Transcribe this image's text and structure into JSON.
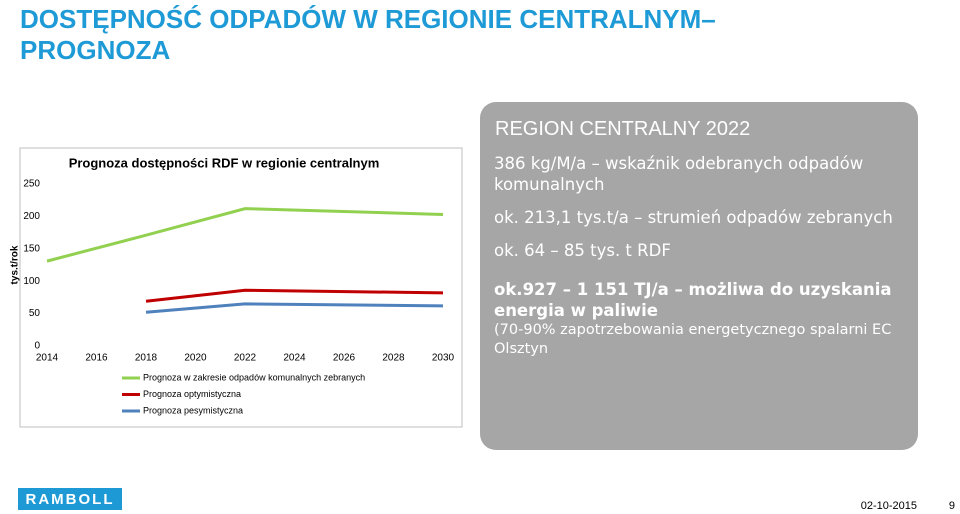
{
  "header": {
    "title": "DOSTĘPNOŚĆ ODPADÓW W REGIONIE CENTRALNYM– PROGNOZA"
  },
  "chart_data": {
    "type": "line",
    "title": "Prognoza dostępności RDF w regionie centralnym",
    "y_label": "tys.t/rok",
    "x": [
      2014,
      2018,
      2022,
      2030
    ],
    "series": [
      {
        "name": "Prognoza w zakresie odpadów komunalnych zebranych",
        "color": "#92d050",
        "values": [
          131,
          171,
          212,
          203
        ]
      },
      {
        "name": "Prognoza optymistyczna",
        "color": "#c00000",
        "values": [
          null,
          69,
          86,
          82
        ]
      },
      {
        "name": "Prognoza pesymistyczna",
        "color": "#4f81bd",
        "values": [
          null,
          52,
          65,
          62
        ]
      }
    ],
    "xlim": [
      2014,
      2030
    ],
    "xticks": [
      2014,
      2016,
      2018,
      2020,
      2022,
      2024,
      2026,
      2028,
      2030
    ],
    "ylim": [
      0,
      250
    ],
    "yticks": [
      0,
      50,
      100,
      150,
      200,
      250
    ],
    "grid": false
  },
  "panel": {
    "heading": "REGION CENTRALNY 2022",
    "items": [
      "386 kg/M/a – wskaźnik odebranych odpadów komunalnych",
      "ok. 213,1 tys.t/a – strumień odpadów zebranych",
      "ok. 64 – 85 tys. t RDF",
      "ok.927 – 1 151 TJ/a – możliwa do uzyskania energia w paliwie",
      "(70-90% zapotrzebowania energetycznego spalarni EC Olsztyn"
    ]
  },
  "footer": {
    "logo": "RAMBOLL",
    "date": "02-10-2015",
    "page": "9"
  }
}
